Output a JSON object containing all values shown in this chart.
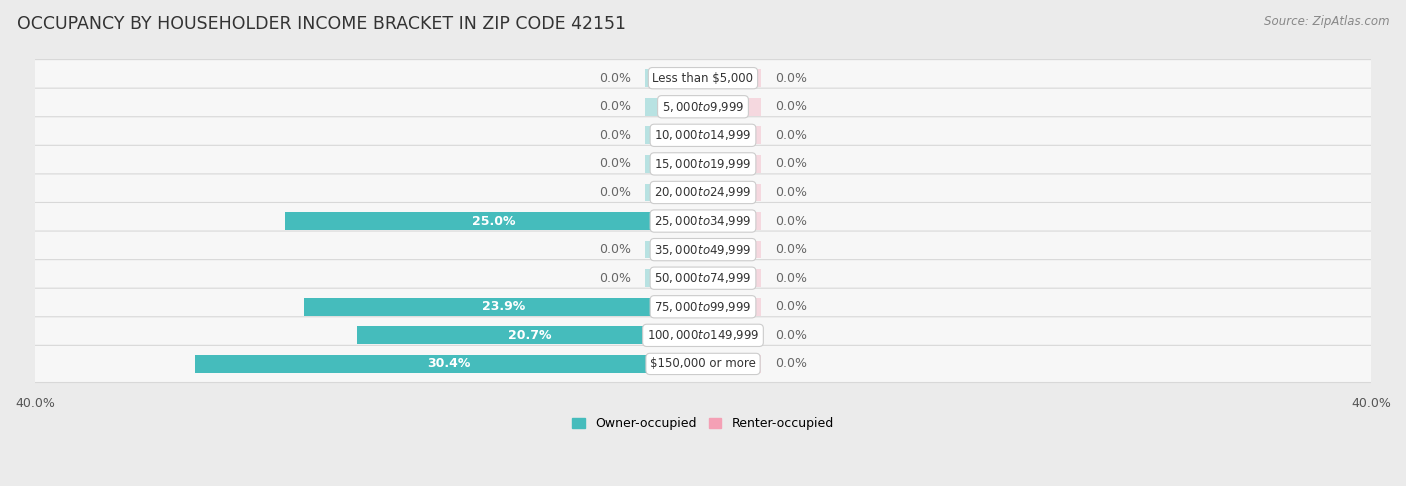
{
  "title": "OCCUPANCY BY HOUSEHOLDER INCOME BRACKET IN ZIP CODE 42151",
  "source": "Source: ZipAtlas.com",
  "categories": [
    "Less than $5,000",
    "$5,000 to $9,999",
    "$10,000 to $14,999",
    "$15,000 to $19,999",
    "$20,000 to $24,999",
    "$25,000 to $34,999",
    "$35,000 to $49,999",
    "$50,000 to $74,999",
    "$75,000 to $99,999",
    "$100,000 to $149,999",
    "$150,000 or more"
  ],
  "owner_values": [
    0.0,
    0.0,
    0.0,
    0.0,
    0.0,
    25.0,
    0.0,
    0.0,
    23.9,
    20.7,
    30.4
  ],
  "renter_values": [
    0.0,
    0.0,
    0.0,
    0.0,
    0.0,
    0.0,
    0.0,
    0.0,
    0.0,
    0.0,
    0.0
  ],
  "owner_color": "#45BCBC",
  "renter_color": "#F4A0B5",
  "zero_stub": 3.5,
  "axis_limit": 40.0,
  "bar_height": 0.62,
  "bg_color": "#ebebeb",
  "row_bg_color": "#f7f7f7",
  "row_border_color": "#d8d8d8",
  "title_fontsize": 12.5,
  "source_fontsize": 8.5,
  "label_fontsize": 9,
  "category_fontsize": 8.5,
  "legend_fontsize": 9,
  "axis_label_fontsize": 9
}
